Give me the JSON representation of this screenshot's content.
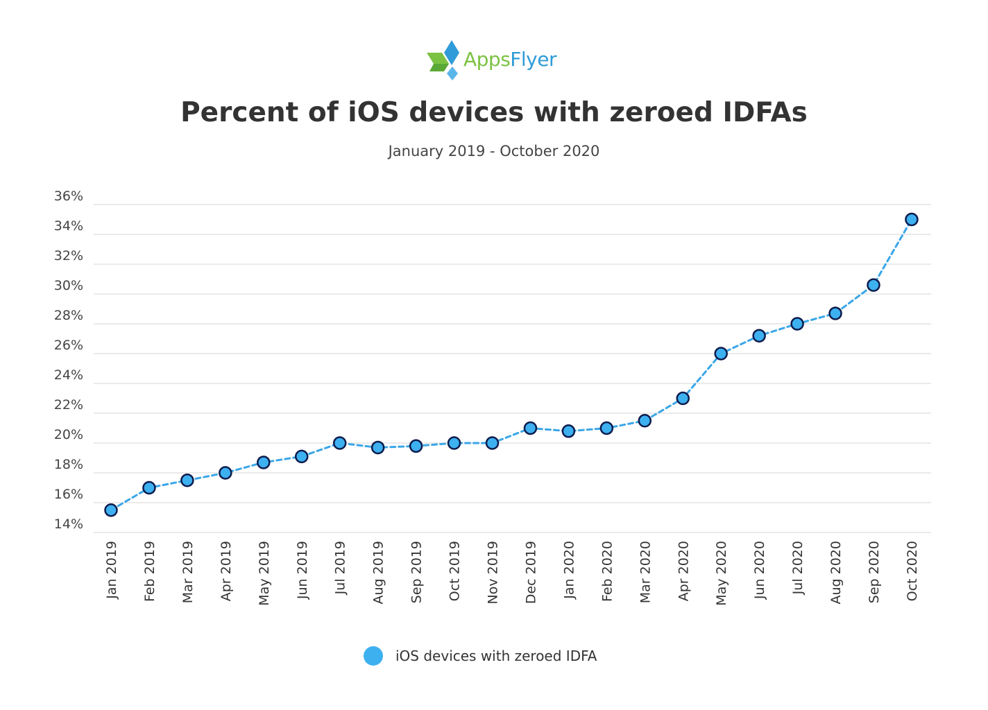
{
  "logo": {
    "text_part1": "Apps",
    "text_part2": "Flyer"
  },
  "header": {
    "title": "Percent of iOS devices with zeroed IDFAs",
    "subtitle": "January 2019 - October 2020"
  },
  "colors": {
    "line": "#3aa6e8",
    "marker_fill": "#3db0f0",
    "marker_stroke": "#0d1b4c",
    "grid": "#e3e3e3",
    "text": "#333333",
    "logo_green": "#7cc242",
    "logo_blue": "#2f9bd8"
  },
  "chart_data": {
    "type": "line",
    "title": "Percent of iOS devices with zeroed IDFAs",
    "subtitle": "January 2019 - October 2020",
    "xlabel": "",
    "ylabel": "",
    "ylim": [
      14,
      36
    ],
    "y_ticks": [
      "14%",
      "16%",
      "18%",
      "20%",
      "22%",
      "24%",
      "26%",
      "28%",
      "30%",
      "32%",
      "34%",
      "36%"
    ],
    "categories": [
      "Jan 2019",
      "Feb 2019",
      "Mar 2019",
      "Apr 2019",
      "May 2019",
      "Jun 2019",
      "Jul 2019",
      "Aug 2019",
      "Sep 2019",
      "Oct 2019",
      "Nov 2019",
      "Dec 2019",
      "Jan 2020",
      "Feb 2020",
      "Mar 2020",
      "Apr 2020",
      "May 2020",
      "Jun 2020",
      "Jul 2020",
      "Aug 2020",
      "Sep 2020",
      "Oct 2020"
    ],
    "series": [
      {
        "name": "iOS devices with zeroed IDFA",
        "values": [
          15.5,
          17.0,
          17.5,
          18.0,
          18.7,
          19.1,
          20.0,
          19.7,
          19.8,
          20.0,
          20.0,
          21.0,
          20.8,
          21.0,
          21.5,
          23.0,
          26.0,
          27.2,
          28.0,
          28.7,
          30.6,
          35.0
        ]
      }
    ],
    "grid": true,
    "legend_position": "bottom-center",
    "line_style": "dashed"
  }
}
